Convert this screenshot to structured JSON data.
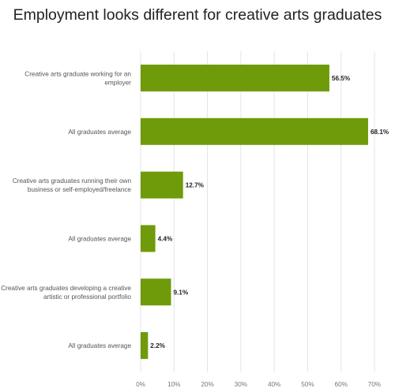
{
  "chart_data": {
    "type": "bar",
    "orientation": "horizontal",
    "title": "Employment looks different for creative arts graduates",
    "categories": [
      [
        "Creative arts graduate working for an",
        "employer"
      ],
      [
        "All graduates average"
      ],
      [
        "Creative arts graduates running their own",
        "business or self-employed/freelance"
      ],
      [
        "All graduates average"
      ],
      [
        "Creative arts graduates developing a creative",
        "artistic or professional portfolio"
      ],
      [
        "All graduates average"
      ]
    ],
    "values": [
      56.5,
      68.1,
      12.7,
      4.4,
      9.1,
      2.2
    ],
    "value_labels": [
      "56.5%",
      "68.1%",
      "12.7%",
      "4.4%",
      "9.1%",
      "2.2%"
    ],
    "xlim": [
      0,
      70
    ],
    "xticks": [
      0,
      10,
      20,
      30,
      40,
      50,
      60,
      70
    ],
    "xtick_labels": [
      "0%",
      "10%",
      "20%",
      "30%",
      "40%",
      "50%",
      "60%",
      "70%"
    ],
    "xlabel": "",
    "ylabel": "",
    "grid": true,
    "bar_color": "#6f9a0a",
    "grid_color": "#e4e4e4"
  }
}
